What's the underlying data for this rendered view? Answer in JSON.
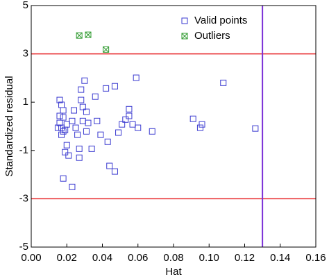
{
  "chart_data": {
    "type": "scatter",
    "x_label": "Hat",
    "y_label": "Standardized residual",
    "xlim": [
      0,
      0.16
    ],
    "ylim": [
      -5,
      5
    ],
    "xticks": [
      {
        "value": 0,
        "label": "0.00"
      },
      {
        "value": 0.02,
        "label": "0.02"
      },
      {
        "value": 0.04,
        "label": "0.04"
      },
      {
        "value": 0.06,
        "label": "0.06"
      },
      {
        "value": 0.08,
        "label": "0.08"
      },
      {
        "value": 0.1,
        "label": "0.10"
      },
      {
        "value": 0.12,
        "label": "0.12"
      },
      {
        "value": 0.14,
        "label": "0.14"
      },
      {
        "value": 0.16,
        "label": "0.16"
      }
    ],
    "yticks": [
      -5,
      -3,
      -1,
      1,
      3,
      5
    ],
    "hlines": [
      3,
      -3
    ],
    "hline_color": "#e8262a",
    "vline": 0.13,
    "vline_color": "#7a2fd6",
    "legend": "upper right",
    "series": [
      {
        "name": "Valid points",
        "color": "#3a3ad0",
        "marker": "square",
        "x": [
          0.016,
          0.017,
          0.018,
          0.018,
          0.016,
          0.017,
          0.018,
          0.02,
          0.019,
          0.017,
          0.019,
          0.02,
          0.018,
          0.023,
          0.021,
          0.023,
          0.024,
          0.025,
          0.026,
          0.027,
          0.027,
          0.028,
          0.03,
          0.028,
          0.029,
          0.031,
          0.029,
          0.031,
          0.032,
          0.034,
          0.036,
          0.037,
          0.039,
          0.042,
          0.043,
          0.044,
          0.047,
          0.047,
          0.049,
          0.051,
          0.055,
          0.055,
          0.053,
          0.057,
          0.059,
          0.06,
          0.068,
          0.091,
          0.095,
          0.096,
          0.108,
          0.126,
          0.015,
          0.016
        ],
        "values": [
          1.09,
          0.89,
          0.66,
          0.37,
          0.14,
          -0.06,
          -0.21,
          0.08,
          -0.15,
          -0.35,
          -1.07,
          -0.78,
          -2.16,
          -2.51,
          -1.21,
          0.22,
          0.66,
          -0.06,
          -0.35,
          -0.93,
          -1.3,
          1.52,
          1.89,
          1.09,
          0.8,
          0.6,
          0.22,
          -0.21,
          0.14,
          -0.93,
          1.23,
          0.22,
          -0.35,
          1.57,
          -0.64,
          -1.64,
          1.66,
          -1.87,
          -0.26,
          0.08,
          0.71,
          0.43,
          0.28,
          0.08,
          2.01,
          -0.06,
          -0.21,
          0.31,
          -0.06,
          0.08,
          1.8,
          -0.09,
          -0.06,
          0.43
        ]
      },
      {
        "name": "Outliers",
        "color": "#2f9a2f",
        "marker": "square-x",
        "x": [
          0.027,
          0.032,
          0.042
        ],
        "values": [
          3.76,
          3.79,
          3.18
        ]
      }
    ]
  }
}
